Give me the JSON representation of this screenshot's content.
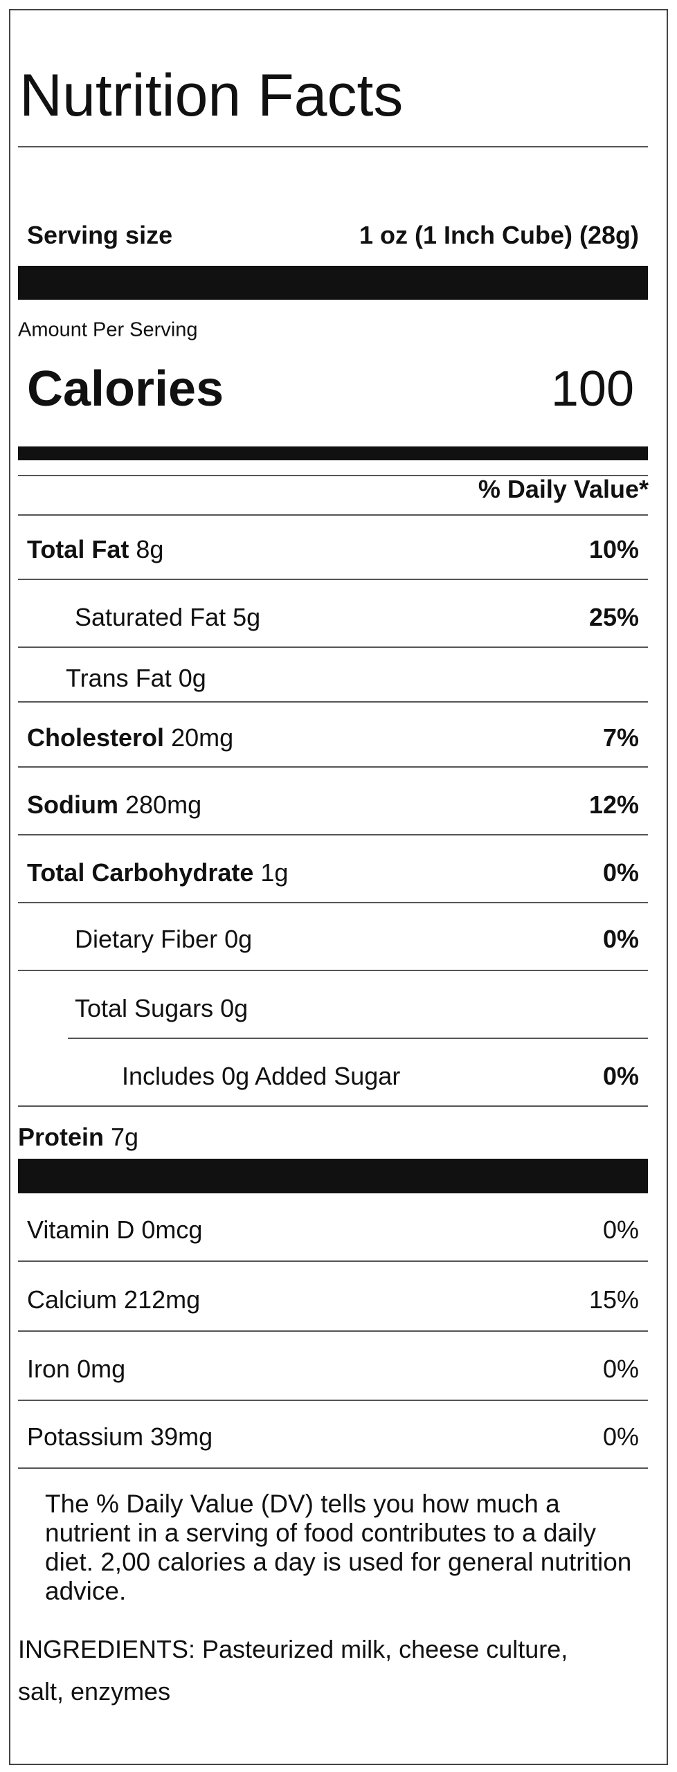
{
  "title": "Nutrition Facts",
  "serving": {
    "label": "Serving size",
    "value": "1 oz (1 Inch Cube) (28g)"
  },
  "amount_per_serving": "Amount Per Serving",
  "calories": {
    "label": "Calories",
    "value": "100"
  },
  "daily_value_header": "% Daily Value*",
  "nutrients": [
    {
      "name": "Total Fat",
      "amount": "8g",
      "dv": "10%"
    },
    {
      "name": "Saturated Fat",
      "amount": "5g",
      "dv": "25%"
    },
    {
      "name": "Trans Fat",
      "amount": "0g"
    },
    {
      "name": "Cholesterol",
      "amount": "20mg",
      "dv": "7%"
    },
    {
      "name": "Sodium",
      "amount": "280mg",
      "dv": "12%"
    },
    {
      "name": "Total Carbohydrate",
      "amount": "1g",
      "dv": "0%"
    },
    {
      "name": "Dietary Fiber",
      "amount": "0g",
      "dv": "0%"
    },
    {
      "name": "Total Sugars",
      "amount": "0g"
    },
    {
      "name": "Includes 0g Added Sugar",
      "dv": "0%"
    },
    {
      "name": "Protein",
      "amount": "7g"
    }
  ],
  "vitamins": [
    {
      "name": "Vitamin D",
      "amount": "0mcg",
      "dv": "0%"
    },
    {
      "name": "Calcium",
      "amount": "212mg",
      "dv": "15%"
    },
    {
      "name": "Iron",
      "amount": "0mg",
      "dv": "0%"
    },
    {
      "name": "Potassium",
      "amount": "39mg",
      "dv": "0%"
    }
  ],
  "footnote": "The % Daily Value (DV) tells you how much a nutrient in a serving of food contributes to a daily diet. 2,00 calories a day is used for general nutrition advice.",
  "ingredients": "INGREDIENTS: Pasteurized milk, cheese culture, salt, enzymes"
}
